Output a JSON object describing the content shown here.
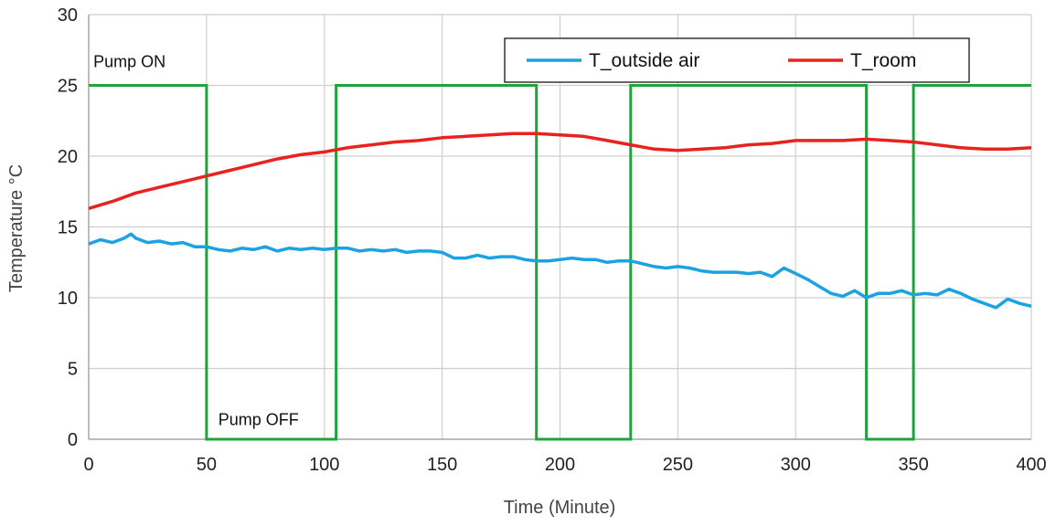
{
  "chart_data": {
    "type": "line",
    "xlabel": "Time (Minute)",
    "ylabel": "Temperature °C",
    "xlim": [
      0,
      400
    ],
    "ylim": [
      0,
      30
    ],
    "xticks": [
      0,
      50,
      100,
      150,
      200,
      250,
      300,
      350,
      400
    ],
    "yticks": [
      0,
      5,
      10,
      15,
      20,
      25,
      30
    ],
    "grid": true,
    "legend_position": "top-right",
    "annotations": [
      {
        "text": "Pump ON",
        "x": 2,
        "y": 26.3
      },
      {
        "text": "Pump OFF",
        "x": 55,
        "y": 1.0
      }
    ],
    "series": [
      {
        "name": "T_outside air",
        "color": "#1AA3E0",
        "x": [
          0,
          5,
          10,
          15,
          18,
          20,
          25,
          30,
          35,
          40,
          45,
          50,
          55,
          60,
          65,
          70,
          75,
          80,
          85,
          90,
          95,
          100,
          105,
          110,
          115,
          120,
          125,
          130,
          135,
          140,
          145,
          150,
          155,
          160,
          165,
          170,
          175,
          180,
          185,
          190,
          195,
          200,
          205,
          210,
          215,
          220,
          225,
          230,
          235,
          240,
          245,
          250,
          255,
          260,
          265,
          270,
          275,
          280,
          285,
          290,
          295,
          300,
          305,
          310,
          315,
          320,
          325,
          330,
          335,
          340,
          345,
          350,
          355,
          360,
          365,
          370,
          375,
          380,
          385,
          390,
          395,
          400
        ],
        "values": [
          13.8,
          14.1,
          13.9,
          14.2,
          14.5,
          14.2,
          13.9,
          14.0,
          13.8,
          13.9,
          13.6,
          13.6,
          13.4,
          13.3,
          13.5,
          13.4,
          13.6,
          13.3,
          13.5,
          13.4,
          13.5,
          13.4,
          13.5,
          13.5,
          13.3,
          13.4,
          13.3,
          13.4,
          13.2,
          13.3,
          13.3,
          13.2,
          12.8,
          12.8,
          13.0,
          12.8,
          12.9,
          12.9,
          12.7,
          12.6,
          12.6,
          12.7,
          12.8,
          12.7,
          12.7,
          12.5,
          12.6,
          12.6,
          12.4,
          12.2,
          12.1,
          12.2,
          12.1,
          11.9,
          11.8,
          11.8,
          11.8,
          11.7,
          11.8,
          11.5,
          12.1,
          11.7,
          11.3,
          10.8,
          10.3,
          10.1,
          10.5,
          10.0,
          10.3,
          10.3,
          10.5,
          10.2,
          10.3,
          10.2,
          10.6,
          10.3,
          9.9,
          9.6,
          9.3,
          9.9,
          9.6,
          9.4
        ]
      },
      {
        "name": "T_room",
        "color": "#E8221E",
        "x": [
          0,
          10,
          20,
          30,
          40,
          50,
          60,
          70,
          80,
          90,
          100,
          110,
          120,
          130,
          140,
          150,
          160,
          170,
          180,
          190,
          200,
          210,
          220,
          230,
          240,
          250,
          260,
          270,
          280,
          290,
          300,
          310,
          320,
          330,
          340,
          350,
          360,
          370,
          380,
          390,
          400
        ],
        "values": [
          16.3,
          16.8,
          17.4,
          17.8,
          18.2,
          18.6,
          19.0,
          19.4,
          19.8,
          20.1,
          20.3,
          20.6,
          20.8,
          21.0,
          21.1,
          21.3,
          21.4,
          21.5,
          21.6,
          21.6,
          21.5,
          21.4,
          21.1,
          20.8,
          20.5,
          20.4,
          20.5,
          20.6,
          20.8,
          20.9,
          21.1,
          21.1,
          21.1,
          21.2,
          21.1,
          21.0,
          20.8,
          20.6,
          20.5,
          20.5,
          20.6
        ]
      }
    ],
    "pump_signal": {
      "color": "#1FA33A",
      "x": [
        0,
        50,
        50,
        105,
        105,
        190,
        190,
        230,
        230,
        330,
        330,
        350,
        350,
        400
      ],
      "values": [
        25,
        25,
        0,
        0,
        25,
        25,
        0,
        0,
        25,
        25,
        0,
        0,
        25,
        25
      ]
    }
  }
}
